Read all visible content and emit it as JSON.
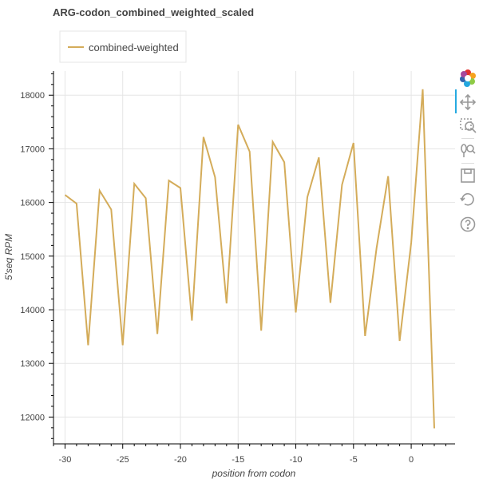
{
  "chart_data": {
    "type": "line",
    "title": "ARG-codon_combined_weighted_scaled",
    "xlabel": "position from codon",
    "ylabel": "5'seq RPM",
    "xlim": [
      -31,
      3.8
    ],
    "ylim": [
      11500,
      18450
    ],
    "xticks": [
      -30,
      -25,
      -20,
      -15,
      -10,
      -5,
      0
    ],
    "yticks": [
      12000,
      13000,
      14000,
      15000,
      16000,
      17000,
      18000
    ],
    "grid": true,
    "legend_position": "top-left",
    "series": [
      {
        "name": "combined-weighted",
        "color": "#d4ac5a",
        "x": [
          -30,
          -29,
          -28,
          -27,
          -26,
          -25,
          -24,
          -23,
          -22,
          -21,
          -20,
          -19,
          -18,
          -17,
          -16,
          -15,
          -14,
          -13,
          -12,
          -11,
          -10,
          -9,
          -8,
          -7,
          -6,
          -5,
          -4,
          -3,
          -2,
          -1,
          0,
          1,
          2
        ],
        "y": [
          16140,
          15980,
          13340,
          16220,
          15870,
          13340,
          16350,
          16080,
          13550,
          16410,
          16270,
          13800,
          17220,
          16470,
          14120,
          17450,
          16950,
          13610,
          17130,
          16750,
          13950,
          16100,
          16840,
          14130,
          16330,
          17110,
          13510,
          15150,
          16490,
          13420,
          15250,
          18110,
          11790
        ]
      }
    ]
  },
  "toolbar": {
    "tools": [
      {
        "name": "bokeh-logo-icon"
      },
      {
        "name": "pan-icon"
      },
      {
        "name": "box-zoom-icon"
      },
      {
        "name": "wheel-zoom-icon"
      },
      {
        "name": "save-icon"
      },
      {
        "name": "reset-icon"
      },
      {
        "name": "help-icon"
      }
    ]
  }
}
